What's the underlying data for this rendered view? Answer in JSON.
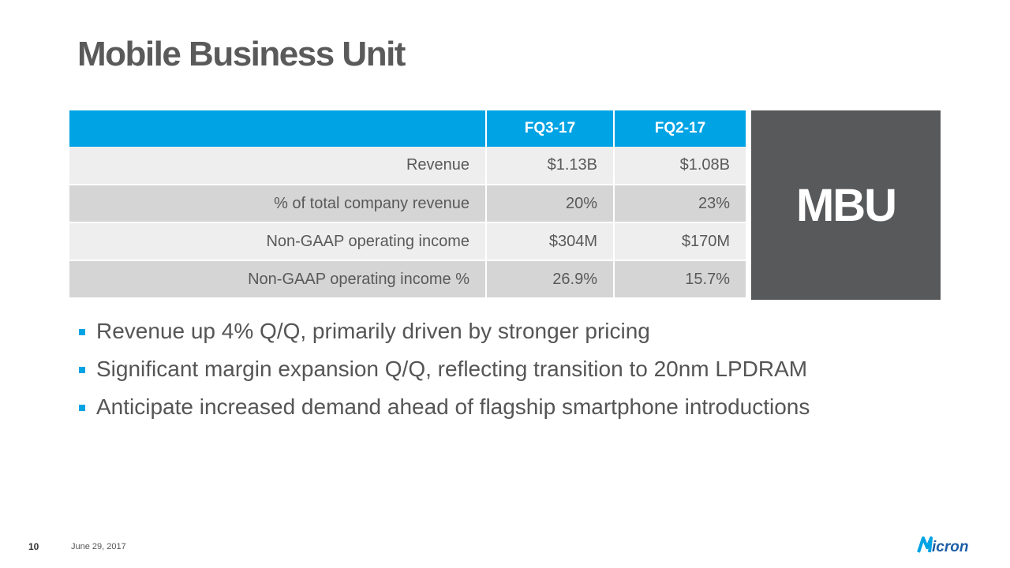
{
  "title": "Mobile Business Unit",
  "table": {
    "headers": [
      "",
      "FQ3-17",
      "FQ2-17"
    ],
    "rows": [
      {
        "label": "Revenue",
        "fq3": "$1.13B",
        "fq2": "$1.08B"
      },
      {
        "label": "% of total company revenue",
        "fq3": "20%",
        "fq2": "23%"
      },
      {
        "label": "Non-GAAP operating income",
        "fq3": "$304M",
        "fq2": "$170M"
      },
      {
        "label": "Non-GAAP operating income %",
        "fq3": "26.9%",
        "fq2": "15.7%"
      }
    ]
  },
  "badge": "MBU",
  "bullets": [
    "Revenue up 4% Q/Q, primarily driven by stronger pricing",
    "Significant margin expansion Q/Q, reflecting transition to 20nm LPDRAM",
    "Anticipate increased demand ahead of flagship smartphone introductions"
  ],
  "footer": {
    "page_number": "10",
    "date": "June 29, 2017",
    "logo_text": "Micron"
  },
  "colors": {
    "accent": "#00a3e4",
    "badge_bg": "#58595b",
    "row_light": "#eeeeee",
    "row_dark": "#d5d5d5"
  }
}
